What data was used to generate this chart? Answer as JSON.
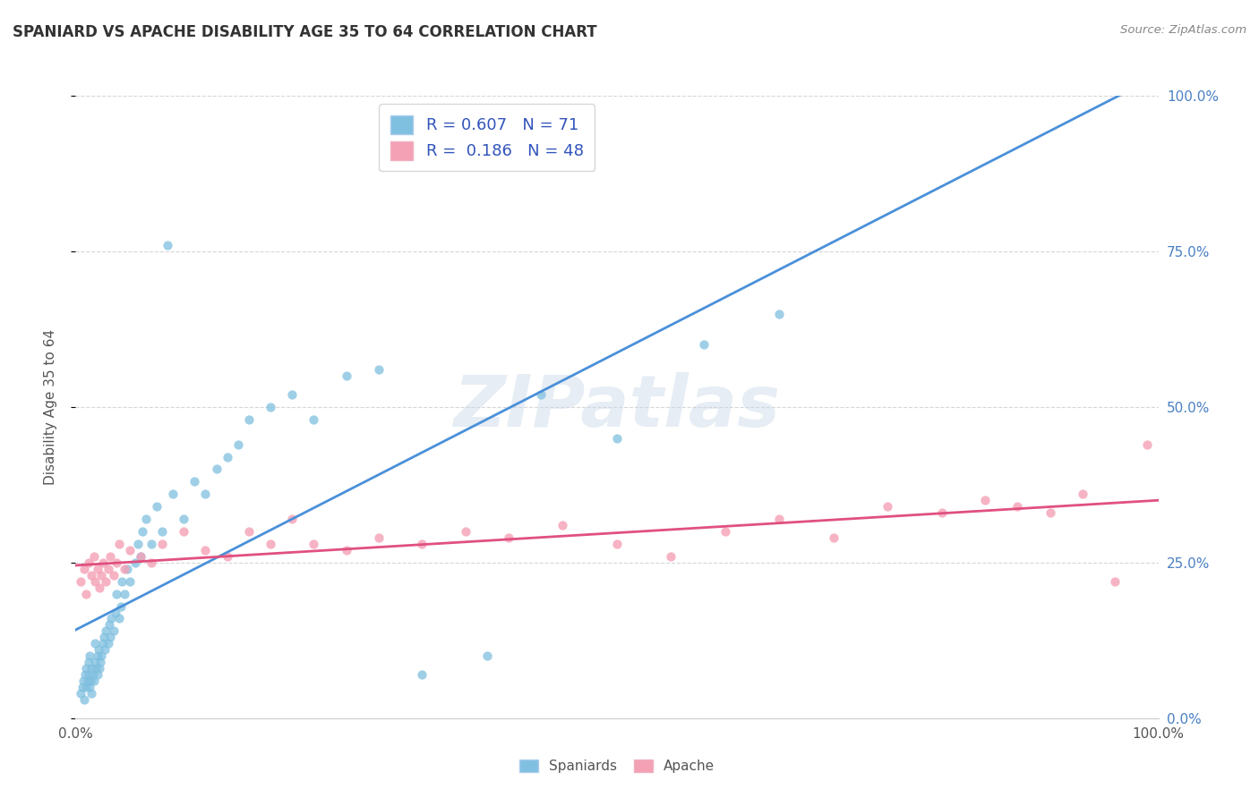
{
  "title": "SPANIARD VS APACHE DISABILITY AGE 35 TO 64 CORRELATION CHART",
  "source_text": "Source: ZipAtlas.com",
  "ylabel": "Disability Age 35 to 64",
  "xlim": [
    0.0,
    1.0
  ],
  "ylim": [
    0.0,
    1.0
  ],
  "ytick_positions": [
    0.0,
    0.25,
    0.5,
    0.75,
    1.0
  ],
  "ytick_labels": [
    "0.0%",
    "25.0%",
    "50.0%",
    "75.0%",
    "100.0%"
  ],
  "r_spaniard": 0.607,
  "n_spaniard": 71,
  "r_apache": 0.186,
  "n_apache": 48,
  "color_spaniard": "#7fbfdf",
  "color_apache": "#f4a0b5",
  "line_color_spaniard": "#4a90d9",
  "line_color_apache": "#e05080",
  "watermark": "ZIPatlas",
  "background_color": "#ffffff",
  "grid_color": "#cccccc",
  "spaniard_x": [
    0.005,
    0.006,
    0.007,
    0.008,
    0.009,
    0.01,
    0.01,
    0.011,
    0.012,
    0.012,
    0.013,
    0.013,
    0.014,
    0.015,
    0.015,
    0.016,
    0.017,
    0.018,
    0.018,
    0.019,
    0.02,
    0.02,
    0.021,
    0.022,
    0.023,
    0.024,
    0.025,
    0.026,
    0.027,
    0.028,
    0.03,
    0.031,
    0.032,
    0.033,
    0.035,
    0.037,
    0.038,
    0.04,
    0.042,
    0.043,
    0.045,
    0.048,
    0.05,
    0.055,
    0.058,
    0.06,
    0.062,
    0.065,
    0.07,
    0.075,
    0.08,
    0.085,
    0.09,
    0.1,
    0.11,
    0.12,
    0.13,
    0.14,
    0.15,
    0.16,
    0.18,
    0.2,
    0.22,
    0.25,
    0.28,
    0.32,
    0.38,
    0.43,
    0.5,
    0.58,
    0.65
  ],
  "spaniard_y": [
    0.04,
    0.05,
    0.06,
    0.03,
    0.07,
    0.05,
    0.08,
    0.06,
    0.07,
    0.09,
    0.05,
    0.1,
    0.06,
    0.08,
    0.04,
    0.07,
    0.06,
    0.09,
    0.12,
    0.08,
    0.1,
    0.07,
    0.11,
    0.08,
    0.09,
    0.1,
    0.12,
    0.13,
    0.11,
    0.14,
    0.12,
    0.15,
    0.13,
    0.16,
    0.14,
    0.17,
    0.2,
    0.16,
    0.18,
    0.22,
    0.2,
    0.24,
    0.22,
    0.25,
    0.28,
    0.26,
    0.3,
    0.32,
    0.28,
    0.34,
    0.3,
    0.76,
    0.36,
    0.32,
    0.38,
    0.36,
    0.4,
    0.42,
    0.44,
    0.48,
    0.5,
    0.52,
    0.48,
    0.55,
    0.56,
    0.07,
    0.1,
    0.52,
    0.45,
    0.6,
    0.65
  ],
  "apache_x": [
    0.005,
    0.008,
    0.01,
    0.012,
    0.015,
    0.017,
    0.018,
    0.02,
    0.022,
    0.024,
    0.025,
    0.028,
    0.03,
    0.032,
    0.035,
    0.038,
    0.04,
    0.045,
    0.05,
    0.06,
    0.07,
    0.08,
    0.1,
    0.12,
    0.14,
    0.16,
    0.18,
    0.2,
    0.22,
    0.25,
    0.28,
    0.32,
    0.36,
    0.4,
    0.45,
    0.5,
    0.55,
    0.6,
    0.65,
    0.7,
    0.75,
    0.8,
    0.84,
    0.87,
    0.9,
    0.93,
    0.96,
    0.99
  ],
  "apache_y": [
    0.22,
    0.24,
    0.2,
    0.25,
    0.23,
    0.26,
    0.22,
    0.24,
    0.21,
    0.23,
    0.25,
    0.22,
    0.24,
    0.26,
    0.23,
    0.25,
    0.28,
    0.24,
    0.27,
    0.26,
    0.25,
    0.28,
    0.3,
    0.27,
    0.26,
    0.3,
    0.28,
    0.32,
    0.28,
    0.27,
    0.29,
    0.28,
    0.3,
    0.29,
    0.31,
    0.28,
    0.26,
    0.3,
    0.32,
    0.29,
    0.34,
    0.33,
    0.35,
    0.34,
    0.33,
    0.36,
    0.22,
    0.44
  ]
}
